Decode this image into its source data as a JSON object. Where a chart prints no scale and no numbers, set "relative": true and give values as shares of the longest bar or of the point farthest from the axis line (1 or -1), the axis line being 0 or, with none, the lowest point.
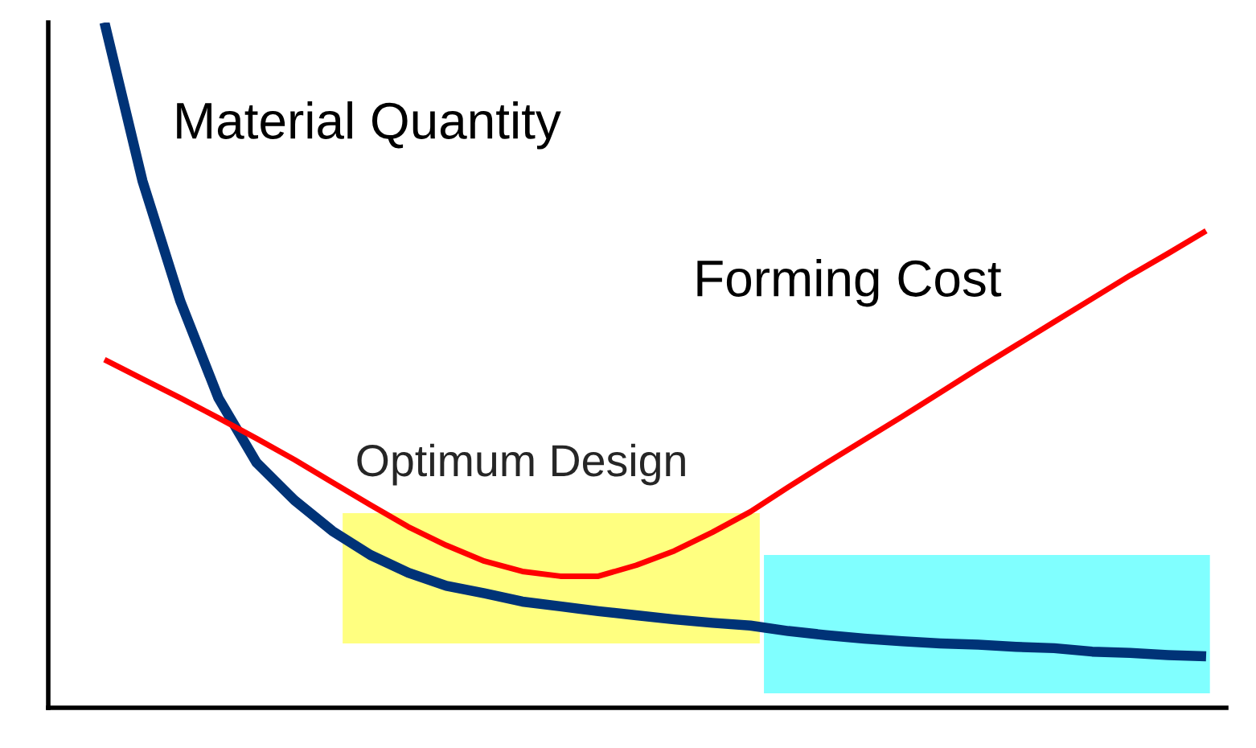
{
  "chart_data": {
    "type": "line",
    "relative": true,
    "categories": [
      null,
      null,
      null,
      null,
      null,
      null,
      null,
      null,
      null,
      null,
      null,
      null,
      null,
      null,
      null,
      null,
      null,
      null,
      null,
      null,
      null,
      null,
      null,
      null,
      null,
      null,
      null,
      null,
      null,
      null
    ],
    "series": [
      {
        "name": "Material Quantity",
        "color": "#003377",
        "values": [
          1.0,
          0.769,
          0.593,
          0.452,
          0.358,
          0.303,
          0.258,
          0.223,
          0.197,
          0.178,
          0.167,
          0.155,
          0.148,
          0.141,
          0.135,
          0.129,
          0.124,
          0.12,
          0.112,
          0.106,
          0.101,
          0.097,
          0.094,
          0.092,
          0.089,
          0.087,
          0.082,
          0.08,
          0.077,
          0.075
        ]
      },
      {
        "name": "Forming Cost",
        "color": "#ff0000",
        "values": [
          0.508,
          0.48,
          0.452,
          0.423,
          0.393,
          0.362,
          0.329,
          0.296,
          0.264,
          0.237,
          0.214,
          0.199,
          0.192,
          0.192,
          0.208,
          0.229,
          0.256,
          0.286,
          0.322,
          0.357,
          0.391,
          0.425,
          0.46,
          0.495,
          0.529,
          0.563,
          0.597,
          0.631,
          0.663,
          0.696
        ]
      }
    ],
    "annotations": [
      "Optimum Design"
    ],
    "legend": false
  }
}
